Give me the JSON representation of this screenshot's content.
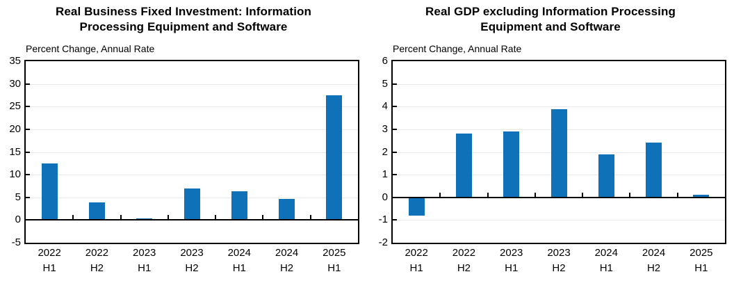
{
  "page": {
    "background": "#ffffff"
  },
  "style": {
    "axis_color": "#000000",
    "grid_color": "#e9e9e9",
    "text_color": "#000000",
    "bar_color": "#0f72b9"
  },
  "chart_data": [
    {
      "type": "bar",
      "title": "Real Business Fixed Investment: Information Processing Equipment and Software",
      "title_lines": [
        "Real Business Fixed Investment: Information",
        "Processing Equipment and Software"
      ],
      "axis_note": "Percent Change, Annual Rate",
      "categories": [
        "2022 H1",
        "2022 H2",
        "2023 H1",
        "2023 H2",
        "2024 H1",
        "2024 H2",
        "2025 H1"
      ],
      "values": [
        12.4,
        3.9,
        0.1,
        7.0,
        6.3,
        4.6,
        27.5
      ],
      "ylim": [
        -5,
        35
      ],
      "yticks": [
        -5,
        0,
        5,
        10,
        15,
        20,
        25,
        30,
        35
      ],
      "grid": true,
      "legend": "none",
      "bar_color": "#0f72b9"
    },
    {
      "type": "bar",
      "title": "Real GDP excluding Information Processing Equipment and Software",
      "title_lines": [
        "Real GDP excluding Information Processing",
        "Equipment and Software"
      ],
      "axis_note": "Percent Change, Annual Rate",
      "categories": [
        "2022 H1",
        "2022 H2",
        "2023 H1",
        "2023 H2",
        "2024 H1",
        "2024 H2",
        "2025 H1"
      ],
      "values": [
        -0.8,
        2.8,
        2.9,
        3.9,
        1.9,
        2.4,
        0.1
      ],
      "ylim": [
        -2,
        6
      ],
      "yticks": [
        -2,
        -1,
        0,
        1,
        2,
        3,
        4,
        5,
        6
      ],
      "grid": true,
      "legend": "none",
      "bar_color": "#0f72b9"
    }
  ]
}
